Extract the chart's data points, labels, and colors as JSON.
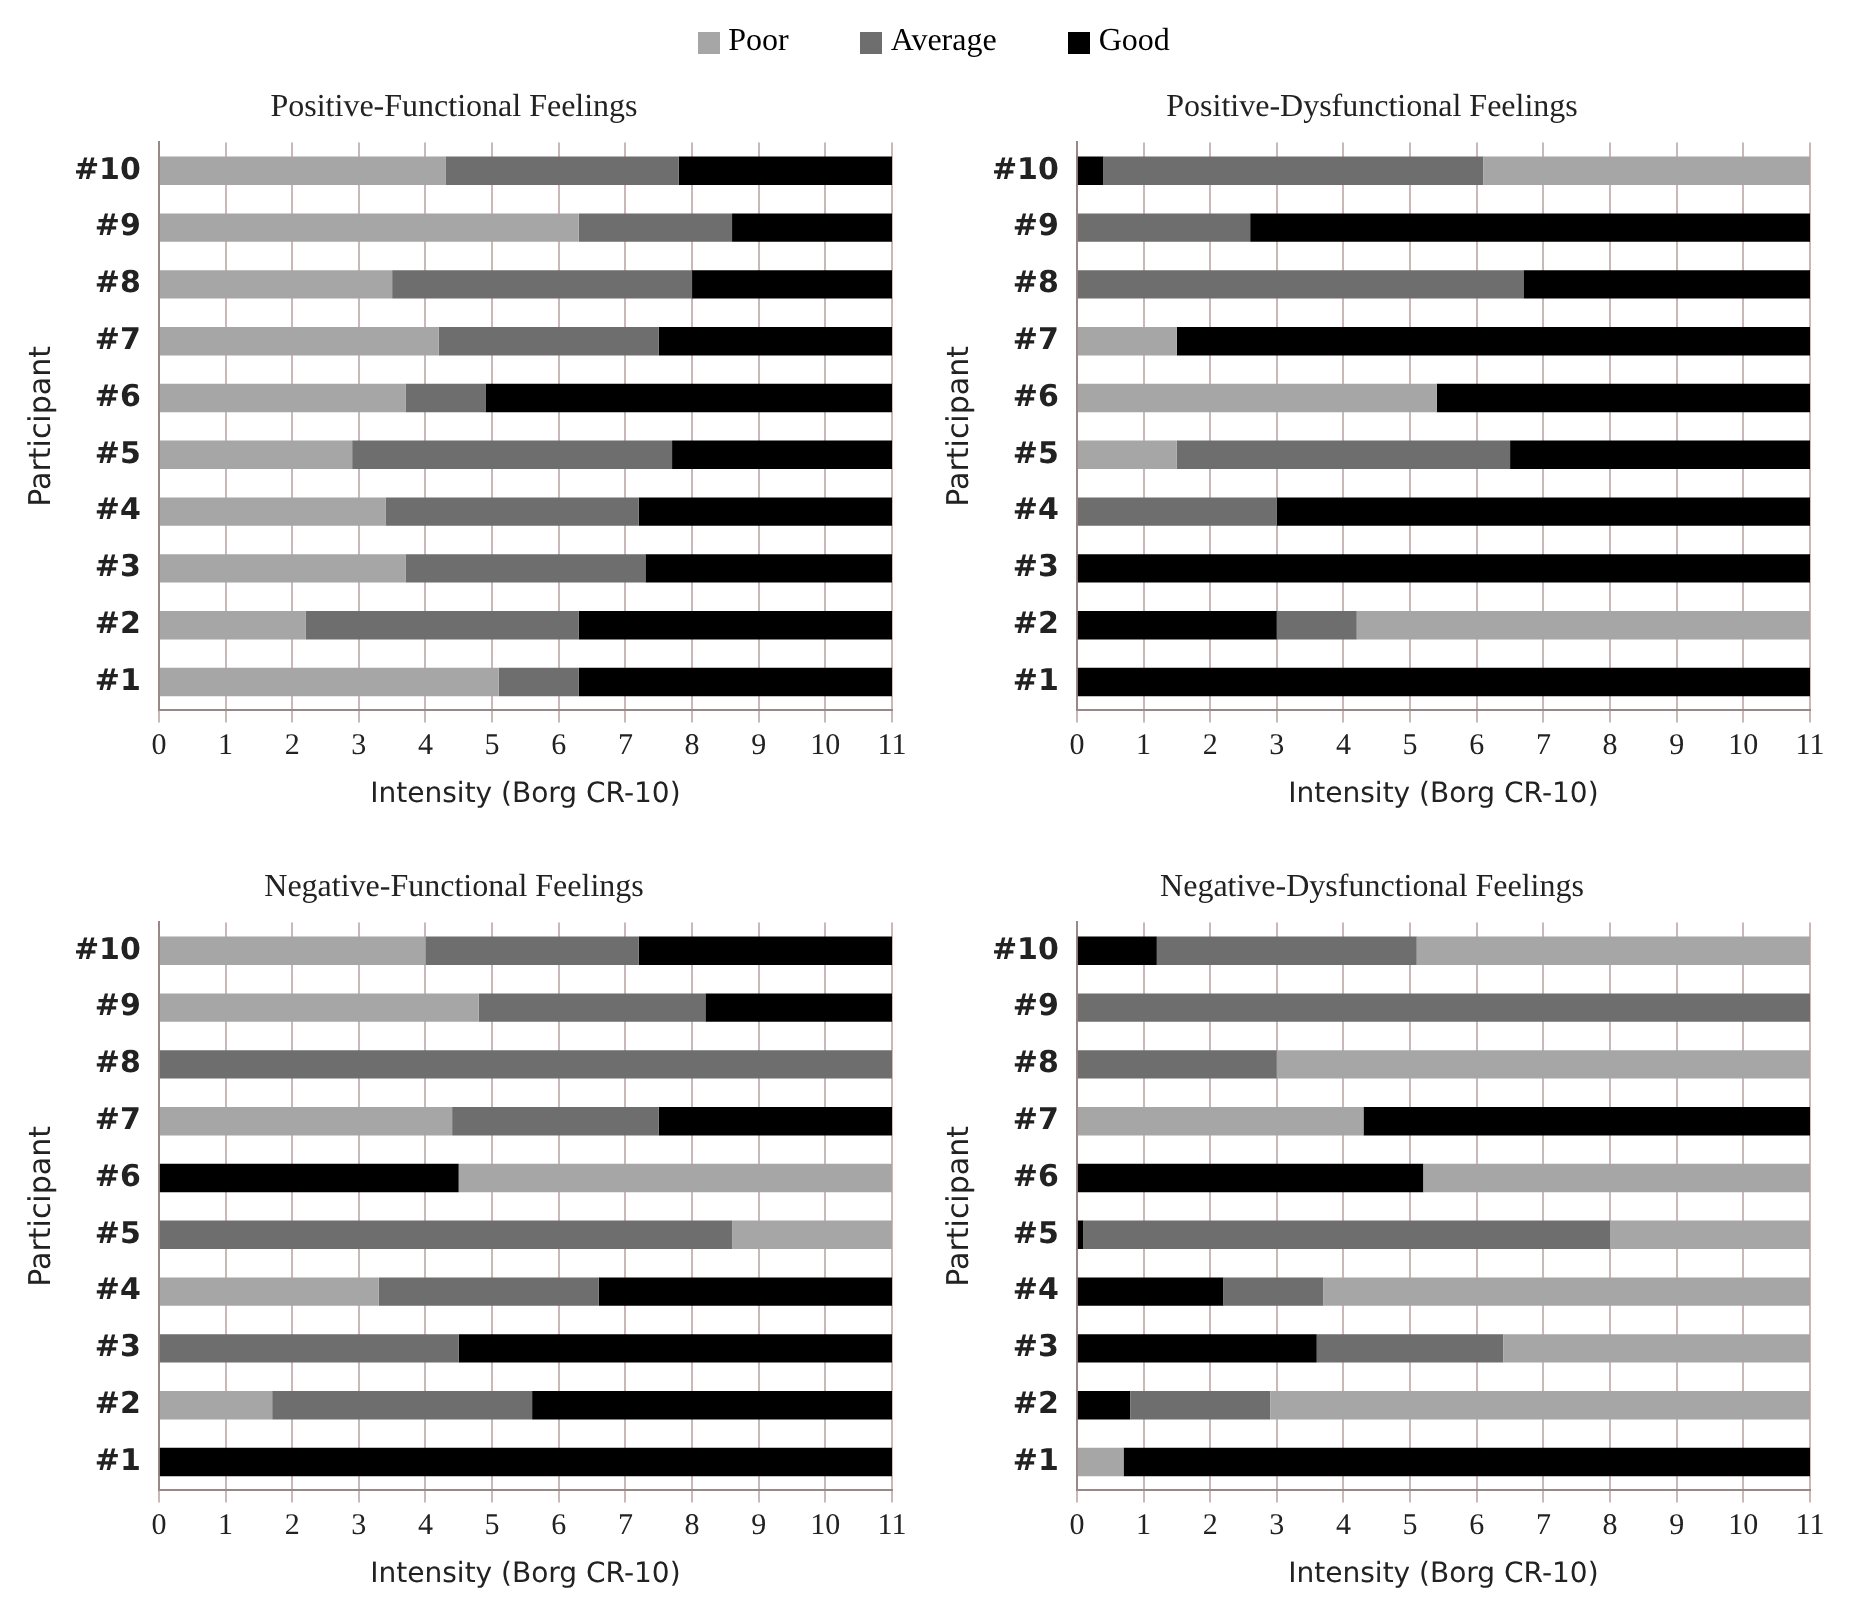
{
  "chart_data": [
    {
      "type": "bar",
      "orientation": "horizontal",
      "title": "Positive-Functional Feelings",
      "xlabel": "Intensity (Borg CR-10)",
      "ylabel": "Participant",
      "legend": "top",
      "grid": "x",
      "categories": [
        "#10",
        "#9",
        "#8",
        "#7",
        "#6",
        "#5",
        "#4",
        "#3",
        "#2",
        "#1"
      ],
      "xlim": [
        0,
        11
      ],
      "xticks": [
        0,
        1,
        2,
        3,
        4,
        5,
        6,
        7,
        8,
        9,
        10,
        11
      ],
      "series": [
        {
          "name": "Poor",
          "color": "#a6a6a6",
          "base": [
            0,
            0,
            0,
            0,
            0,
            0,
            0,
            0,
            0,
            0
          ],
          "values": [
            4.3,
            6.3,
            3.5,
            4.2,
            3.7,
            2.9,
            3.4,
            3.7,
            2.2,
            5.1
          ]
        },
        {
          "name": "Average",
          "color": "#6e6e6e",
          "base": [
            4.3,
            6.3,
            3.5,
            4.2,
            3.7,
            2.9,
            3.4,
            3.7,
            2.2,
            5.1
          ],
          "values": [
            3.5,
            2.3,
            4.5,
            3.3,
            1.2,
            4.8,
            3.8,
            3.6,
            4.1,
            1.2
          ]
        },
        {
          "name": "Good",
          "color": "#000000",
          "base": [
            7.8,
            8.6,
            8.0,
            7.5,
            4.9,
            7.7,
            7.2,
            7.3,
            6.3,
            6.3
          ],
          "values": [
            3.2,
            2.4,
            3.0,
            3.5,
            6.1,
            3.3,
            3.8,
            3.7,
            4.7,
            4.7
          ]
        }
      ]
    },
    {
      "type": "bar",
      "orientation": "horizontal",
      "title": "Positive-Dysfunctional Feelings",
      "xlabel": "Intensity (Borg CR-10)",
      "ylabel": "Participant",
      "grid": "x",
      "categories": [
        "#10",
        "#9",
        "#8",
        "#7",
        "#6",
        "#5",
        "#4",
        "#3",
        "#2",
        "#1"
      ],
      "xlim": [
        0,
        11
      ],
      "xticks": [
        0,
        1,
        2,
        3,
        4,
        5,
        6,
        7,
        8,
        9,
        10,
        11
      ],
      "series": [
        {
          "color": "#a6a6a6",
          "base": [
            6.1,
            null,
            null,
            0,
            0,
            0,
            null,
            null,
            4.2,
            null
          ],
          "values": [
            4.9,
            null,
            null,
            1.5,
            5.4,
            1.5,
            null,
            null,
            6.8,
            null
          ]
        },
        {
          "color": "#6e6e6e",
          "base": [
            0.4,
            0,
            0,
            null,
            null,
            1.5,
            0,
            null,
            3.0,
            null
          ],
          "values": [
            5.7,
            2.6,
            6.7,
            null,
            null,
            5.0,
            3.0,
            null,
            1.2,
            null
          ]
        },
        {
          "color": "#000000",
          "base": [
            0,
            2.6,
            6.7,
            1.5,
            5.4,
            6.5,
            3.0,
            0,
            0,
            0
          ],
          "values": [
            0.4,
            8.4,
            4.3,
            9.5,
            5.6,
            4.5,
            8.0,
            11,
            3.0,
            11
          ]
        }
      ]
    },
    {
      "type": "bar",
      "orientation": "horizontal",
      "title": "Negative-Functional Feelings",
      "xlabel": "Intensity (Borg CR-10)",
      "ylabel": "Participant",
      "grid": "x",
      "categories": [
        "#10",
        "#9",
        "#8",
        "#7",
        "#6",
        "#5",
        "#4",
        "#3",
        "#2",
        "#1"
      ],
      "xlim": [
        0,
        11
      ],
      "xticks": [
        0,
        1,
        2,
        3,
        4,
        5,
        6,
        7,
        8,
        9,
        10,
        11
      ],
      "series": [
        {
          "color": "#a6a6a6",
          "base": [
            0,
            0,
            null,
            0,
            4.5,
            8.6,
            0,
            null,
            0,
            null
          ],
          "values": [
            4.0,
            4.8,
            null,
            4.4,
            6.5,
            2.4,
            3.3,
            null,
            1.7,
            null
          ]
        },
        {
          "color": "#6e6e6e",
          "base": [
            4.0,
            4.8,
            0,
            4.4,
            null,
            0,
            3.3,
            0,
            1.7,
            null
          ],
          "values": [
            3.2,
            3.4,
            11,
            3.1,
            null,
            8.6,
            3.3,
            4.5,
            3.9,
            null
          ]
        },
        {
          "color": "#000000",
          "base": [
            7.2,
            8.2,
            null,
            7.5,
            0,
            null,
            6.6,
            4.5,
            5.6,
            0
          ],
          "values": [
            3.8,
            2.8,
            null,
            3.5,
            4.5,
            null,
            4.4,
            6.5,
            5.4,
            11
          ]
        }
      ]
    },
    {
      "type": "bar",
      "orientation": "horizontal",
      "title": "Negative-Dysfunctional Feelings",
      "xlabel": "Intensity (Borg CR-10)",
      "ylabel": "Participant",
      "grid": "x",
      "categories": [
        "#10",
        "#9",
        "#8",
        "#7",
        "#6",
        "#5",
        "#4",
        "#3",
        "#2",
        "#1"
      ],
      "xlim": [
        0,
        11
      ],
      "xticks": [
        0,
        1,
        2,
        3,
        4,
        5,
        6,
        7,
        8,
        9,
        10,
        11
      ],
      "series": [
        {
          "color": "#a6a6a6",
          "base": [
            5.1,
            null,
            3.0,
            0,
            5.2,
            8.0,
            3.7,
            6.4,
            2.9,
            0
          ],
          "values": [
            5.9,
            null,
            8.0,
            4.3,
            5.8,
            3.0,
            7.3,
            4.6,
            8.1,
            0.7
          ]
        },
        {
          "color": "#6e6e6e",
          "base": [
            1.2,
            0,
            0,
            null,
            null,
            0.1,
            2.2,
            3.6,
            0.8,
            null
          ],
          "values": [
            3.9,
            11,
            3.0,
            null,
            null,
            7.9,
            1.5,
            2.8,
            2.1,
            null
          ]
        },
        {
          "color": "#000000",
          "base": [
            0,
            null,
            null,
            4.3,
            0,
            0,
            0,
            0,
            0,
            0.7
          ],
          "values": [
            1.2,
            null,
            null,
            6.7,
            5.2,
            0.1,
            2.2,
            3.6,
            0.8,
            10.3
          ]
        }
      ]
    }
  ]
}
